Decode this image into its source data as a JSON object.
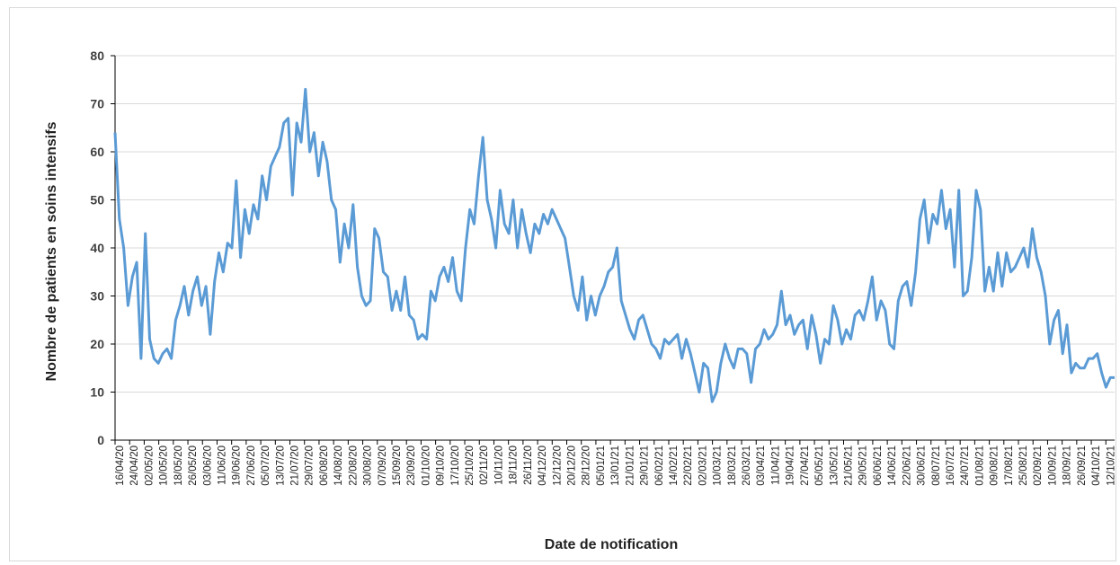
{
  "chart_data": {
    "type": "line",
    "title": "",
    "xlabel": "Date de notification",
    "ylabel": "Nombre de patients en soins intensifs",
    "ylim": [
      0,
      80
    ],
    "yticks": [
      0,
      10,
      20,
      30,
      40,
      50,
      60,
      70,
      80
    ],
    "grid": "horizontal",
    "legend": "none",
    "line_color": "#5b9bd5",
    "x_tick_labels": [
      "16/04/20",
      "24/04/20",
      "02/05/20",
      "10/05/20",
      "18/05/20",
      "26/05/20",
      "03/06/20",
      "11/06/20",
      "19/06/20",
      "27/06/20",
      "05/07/20",
      "13/07/20",
      "21/07/20",
      "29/07/20",
      "06/08/20",
      "14/08/20",
      "22/08/20",
      "30/08/20",
      "07/09/20",
      "15/09/20",
      "23/09/20",
      "01/10/20",
      "09/10/20",
      "17/10/20",
      "25/10/20",
      "02/11/20",
      "10/11/20",
      "18/11/20",
      "26/11/20",
      "04/12/20",
      "12/12/20",
      "20/12/20",
      "28/12/20",
      "05/01/21",
      "13/01/21",
      "21/01/21",
      "29/01/21",
      "06/02/21",
      "14/02/21",
      "22/02/21",
      "02/03/21",
      "10/03/21",
      "18/03/21",
      "26/03/21",
      "03/04/21",
      "11/04/21",
      "19/04/21",
      "27/04/21",
      "05/05/21",
      "13/05/21",
      "21/05/21",
      "29/05/21",
      "06/06/21",
      "14/06/21",
      "22/06/21",
      "30/06/21",
      "08/07/21",
      "16/07/21",
      "24/07/21",
      "01/08/21",
      "09/08/21",
      "17/08/21",
      "25/08/21",
      "02/09/21",
      "10/09/21",
      "18/09/21",
      "26/09/21",
      "04/10/21",
      "12/10/21"
    ],
    "series": [
      {
        "x_start": "16/04/20",
        "x_end": "15/10/21",
        "values": [
          64,
          46,
          40,
          28,
          34,
          37,
          17,
          43,
          21,
          17,
          16,
          18,
          19,
          17,
          25,
          28,
          32,
          26,
          31,
          34,
          28,
          32,
          22,
          33,
          39,
          35,
          41,
          40,
          54,
          38,
          48,
          43,
          49,
          46,
          55,
          50,
          57,
          59,
          61,
          66,
          67,
          51,
          66,
          62,
          73,
          60,
          64,
          55,
          62,
          58,
          50,
          48,
          37,
          45,
          40,
          49,
          36,
          30,
          28,
          29,
          44,
          42,
          35,
          34,
          27,
          31,
          27,
          34,
          26,
          25,
          21,
          22,
          21,
          31,
          29,
          34,
          36,
          33,
          38,
          31,
          29,
          40,
          48,
          45,
          55,
          63,
          50,
          46,
          40,
          52,
          45,
          43,
          50,
          40,
          48,
          43,
          39,
          45,
          43,
          47,
          45,
          48,
          46,
          44,
          42,
          36,
          30,
          27,
          34,
          25,
          30,
          26,
          30,
          32,
          35,
          36,
          40,
          29,
          26,
          23,
          21,
          25,
          26,
          23,
          20,
          19,
          17,
          21,
          20,
          21,
          22,
          17,
          21,
          18,
          14,
          10,
          16,
          15,
          8,
          10,
          16,
          20,
          17,
          15,
          19,
          19,
          18,
          12,
          19,
          20,
          23,
          21,
          22,
          24,
          31,
          24,
          26,
          22,
          24,
          25,
          19,
          26,
          22,
          16,
          21,
          20,
          28,
          25,
          20,
          23,
          21,
          26,
          27,
          25,
          29,
          34,
          25,
          29,
          27,
          20,
          19,
          29,
          32,
          33,
          28,
          35,
          46,
          50,
          41,
          47,
          45,
          52,
          44,
          48,
          36,
          52,
          30,
          31,
          38,
          52,
          48,
          31,
          36,
          31,
          39,
          32,
          39,
          35,
          36,
          38,
          40,
          36,
          44,
          38,
          35,
          30,
          20,
          25,
          27,
          18,
          24,
          14,
          16,
          15,
          15,
          17,
          17,
          18,
          14,
          11,
          13,
          13
        ]
      }
    ]
  }
}
